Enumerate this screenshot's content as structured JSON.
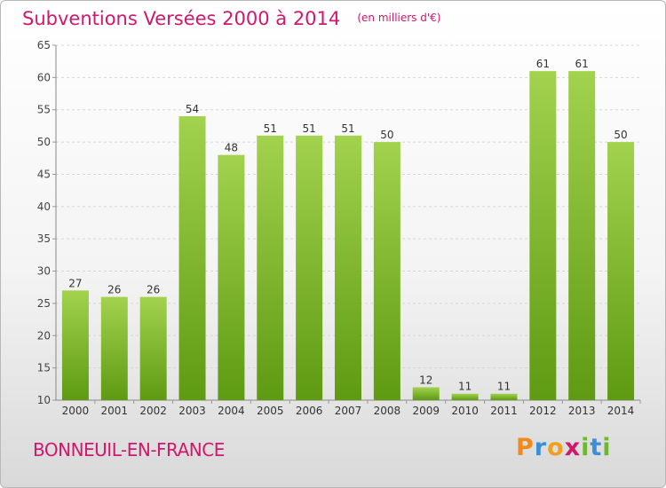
{
  "header": {
    "title": "Subventions Versées 2000 à 2014",
    "subtitle": "(en milliers d'€)"
  },
  "footer": {
    "city": "BONNEUIL-EN-FRANCE",
    "logo_letters": [
      "P",
      "r",
      "o",
      "x",
      "i",
      "t",
      "i"
    ]
  },
  "colors": {
    "title": "#d0186c",
    "bar_light": "#a2d24e",
    "bar_dark": "#5e9a12",
    "logo": [
      "#f08a1c",
      "#3c8fd6",
      "#f0a020",
      "#d0186c",
      "#6cba2c",
      "#3c8fd6",
      "#6cba2c"
    ]
  },
  "chart_data": {
    "type": "bar",
    "categories": [
      "2000",
      "2001",
      "2002",
      "2003",
      "2004",
      "2005",
      "2006",
      "2007",
      "2008",
      "2009",
      "2010",
      "2011",
      "2012",
      "2013",
      "2014"
    ],
    "values": [
      27,
      26,
      26,
      54,
      48,
      51,
      51,
      51,
      50,
      12,
      11,
      11,
      61,
      61,
      50
    ],
    "data_labels": [
      "27",
      "26",
      "26",
      "54",
      "48",
      "51",
      "51",
      "51",
      "50",
      "12",
      "11",
      "11",
      "61",
      "61",
      "50"
    ],
    "yticks": [
      "10",
      "15",
      "20",
      "25",
      "30",
      "35",
      "40",
      "45",
      "50",
      "55",
      "60",
      "65"
    ],
    "ylim": [
      10,
      65
    ],
    "grid": true
  }
}
